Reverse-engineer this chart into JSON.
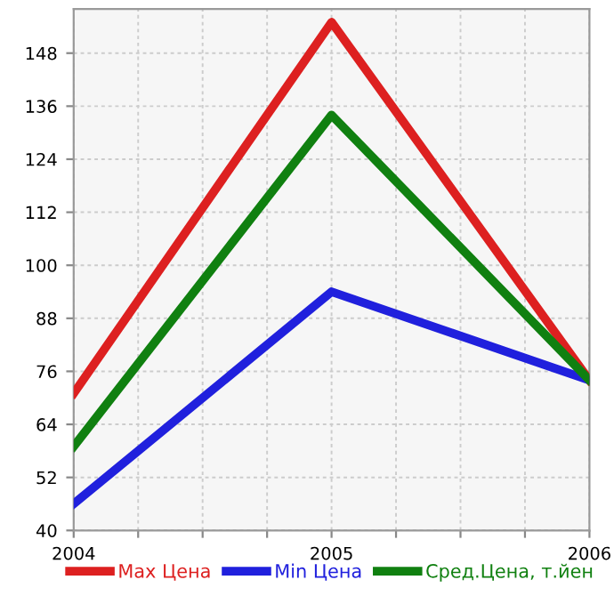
{
  "chart_data": {
    "type": "line",
    "x": [
      2004,
      2005,
      2006
    ],
    "series": [
      {
        "name": "Max Цена",
        "color": "#dd2020",
        "values": [
          71,
          155,
          74
        ]
      },
      {
        "name": "Min Цена",
        "color": "#2020dd",
        "values": [
          46,
          94,
          74
        ]
      },
      {
        "name": "Сред.Цена, т.йен",
        "color": "#108010",
        "values": [
          59,
          134,
          74
        ]
      }
    ],
    "xlim": [
      2004,
      2006
    ],
    "xticks": [
      {
        "value": 2004,
        "label": "2004"
      },
      {
        "value": 2004.25,
        "label": null
      },
      {
        "value": 2004.5,
        "label": null
      },
      {
        "value": 2004.75,
        "label": null
      },
      {
        "value": 2005,
        "label": "2005"
      },
      {
        "value": 2005.25,
        "label": null
      },
      {
        "value": 2005.5,
        "label": null
      },
      {
        "value": 2005.75,
        "label": null
      },
      {
        "value": 2006,
        "label": "2006"
      }
    ],
    "ylim": [
      40,
      158
    ],
    "yticks": [
      40,
      52,
      64,
      76,
      88,
      100,
      112,
      124,
      136,
      148
    ],
    "grid": true,
    "legend": "bottom",
    "marker": "none",
    "line_style": "solid"
  }
}
